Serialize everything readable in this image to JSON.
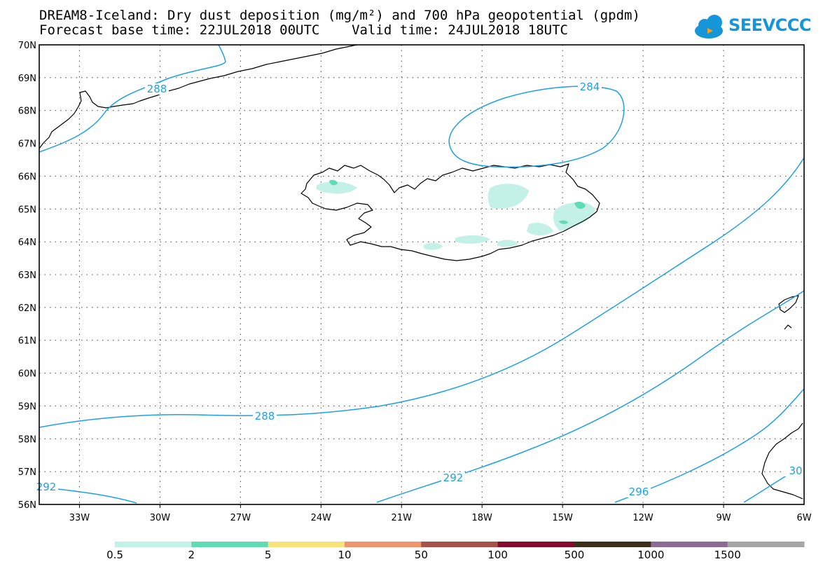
{
  "title": {
    "line1": "DREAM8-Iceland: Dry dust deposition (mg/m²) and 700 hPa geopotential (gpdm)",
    "line2": "Forecast base time: 22JUL2018 00UTC    Valid time: 24JUL2018 18UTC"
  },
  "logo": {
    "text": "SEEVCCC",
    "icon": "cloud-icon",
    "color": "#1596d8"
  },
  "map": {
    "lat_range": [
      56,
      70
    ],
    "lon_range": [
      -34.5,
      -6
    ],
    "lat_labels": [
      "70N",
      "69N",
      "68N",
      "67N",
      "66N",
      "65N",
      "64N",
      "63N",
      "62N",
      "61N",
      "60N",
      "59N",
      "58N",
      "57N",
      "56N"
    ],
    "lon_labels": [
      "33W",
      "30W",
      "27W",
      "24W",
      "21W",
      "18W",
      "15W",
      "12W",
      "9W",
      "6W"
    ],
    "gridlines": "dotted",
    "contour_color": "#1ea0e6",
    "contour_labels": [
      "288",
      "284",
      "288",
      "292",
      "292",
      "296",
      "30"
    ]
  },
  "colorbar": {
    "labels": [
      "0.5",
      "2",
      "5",
      "10",
      "50",
      "100",
      "500",
      "1000",
      "1500"
    ],
    "colors": [
      "#c3f1e7",
      "#5fdcb3",
      "#f9e279",
      "#f0956b",
      "#a8524a",
      "#860a2c",
      "#3d2d1b",
      "#8e6b97",
      "#a6a6a6"
    ]
  }
}
